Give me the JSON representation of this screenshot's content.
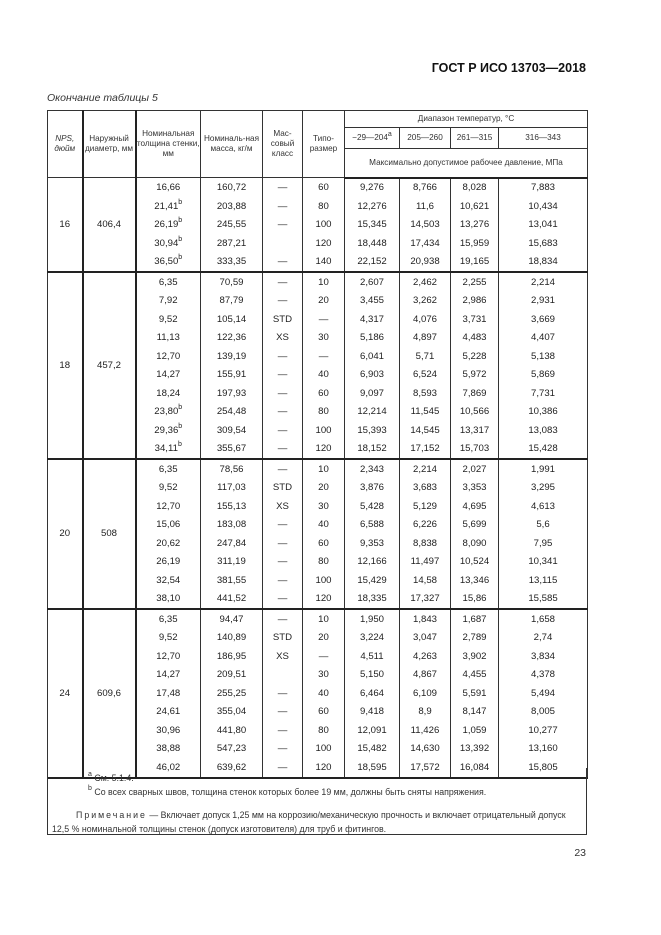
{
  "header": {
    "doc_code": "ГОСТ Р ИСО 13703—2018"
  },
  "caption": "Окончание таблицы 5",
  "table": {
    "headers": {
      "nps": "NPS, дюйм",
      "od": "Наружный диаметр, мм",
      "wall": "Номинальная толщина стенки, мм",
      "mass": "Номиналь-ная масса, кг/м",
      "class": "Мас-совый класс",
      "schedule": "Типо-размер",
      "temp_range": "Диапазон температур, °С",
      "temps": [
        "−29—204",
        "205—260",
        "261—315",
        "316—343"
      ],
      "temp_first_note": "a",
      "pressure": "Максимально допустимое рабочее давление, МПа"
    },
    "groups": [
      {
        "nps": "16",
        "od": "406,4",
        "rows": [
          {
            "wall": "16,66",
            "note": "",
            "mass": "160,72",
            "class": "—",
            "sched": "60",
            "p": [
              "9,276",
              "8,766",
              "8,028",
              "7,883"
            ]
          },
          {
            "wall": "21,41",
            "note": "b",
            "mass": "203,88",
            "class": "—",
            "sched": "80",
            "p": [
              "12,276",
              "11,6",
              "10,621",
              "10,434"
            ]
          },
          {
            "wall": "26,19",
            "note": "b",
            "mass": "245,55",
            "class": "—",
            "sched": "100",
            "p": [
              "15,345",
              "14,503",
              "13,276",
              "13,041"
            ]
          },
          {
            "wall": "30,94",
            "note": "b",
            "mass": "287,21",
            "class": "",
            "sched": "120",
            "p": [
              "18,448",
              "17,434",
              "15,959",
              "15,683"
            ]
          },
          {
            "wall": "36,50",
            "note": "b",
            "mass": "333,35",
            "class": "—",
            "sched": "140",
            "p": [
              "22,152",
              "20,938",
              "19,165",
              "18,834"
            ]
          }
        ]
      },
      {
        "nps": "18",
        "od": "457,2",
        "rows": [
          {
            "wall": "6,35",
            "note": "",
            "mass": "70,59",
            "class": "—",
            "sched": "10",
            "p": [
              "2,607",
              "2,462",
              "2,255",
              "2,214"
            ]
          },
          {
            "wall": "7,92",
            "note": "",
            "mass": "87,79",
            "class": "—",
            "sched": "20",
            "p": [
              "3,455",
              "3,262",
              "2,986",
              "2,931"
            ]
          },
          {
            "wall": "9,52",
            "note": "",
            "mass": "105,14",
            "class": "STD",
            "sched": "—",
            "p": [
              "4,317",
              "4,076",
              "3,731",
              "3,669"
            ]
          },
          {
            "wall": "11,13",
            "note": "",
            "mass": "122,36",
            "class": "XS",
            "sched": "30",
            "p": [
              "5,186",
              "4,897",
              "4,483",
              "4,407"
            ]
          },
          {
            "wall": "12,70",
            "note": "",
            "mass": "139,19",
            "class": "—",
            "sched": "—",
            "p": [
              "6,041",
              "5,71",
              "5,228",
              "5,138"
            ]
          },
          {
            "wall": "14,27",
            "note": "",
            "mass": "155,91",
            "class": "—",
            "sched": "40",
            "p": [
              "6,903",
              "6,524",
              "5,972",
              "5,869"
            ]
          },
          {
            "wall": "18,24",
            "note": "",
            "mass": "197,93",
            "class": "—",
            "sched": "60",
            "p": [
              "9,097",
              "8,593",
              "7,869",
              "7,731"
            ]
          },
          {
            "wall": "23,80",
            "note": "b",
            "mass": "254,48",
            "class": "—",
            "sched": "80",
            "p": [
              "12,214",
              "11,545",
              "10,566",
              "10,386"
            ]
          },
          {
            "wall": "29,36",
            "note": "b",
            "mass": "309,54",
            "class": "—",
            "sched": "100",
            "p": [
              "15,393",
              "14,545",
              "13,317",
              "13,083"
            ]
          },
          {
            "wall": "34,11",
            "note": "b",
            "mass": "355,67",
            "class": "—",
            "sched": "120",
            "p": [
              "18,152",
              "17,152",
              "15,703",
              "15,428"
            ]
          }
        ]
      },
      {
        "nps": "20",
        "od": "508",
        "rows": [
          {
            "wall": "6,35",
            "note": "",
            "mass": "78,56",
            "class": "—",
            "sched": "10",
            "p": [
              "2,343",
              "2,214",
              "2,027",
              "1,991"
            ]
          },
          {
            "wall": "9,52",
            "note": "",
            "mass": "117,03",
            "class": "STD",
            "sched": "20",
            "p": [
              "3,876",
              "3,683",
              "3,353",
              "3,295"
            ]
          },
          {
            "wall": "12,70",
            "note": "",
            "mass": "155,13",
            "class": "XS",
            "sched": "30",
            "p": [
              "5,428",
              "5,129",
              "4,695",
              "4,613"
            ]
          },
          {
            "wall": "15,06",
            "note": "",
            "mass": "183,08",
            "class": "—",
            "sched": "40",
            "p": [
              "6,588",
              "6,226",
              "5,699",
              "5,6"
            ]
          },
          {
            "wall": "20,62",
            "note": "",
            "mass": "247,84",
            "class": "—",
            "sched": "60",
            "p": [
              "9,353",
              "8,838",
              "8,090",
              "7,95"
            ]
          },
          {
            "wall": "26,19",
            "note": "",
            "mass": "311,19",
            "class": "—",
            "sched": "80",
            "p": [
              "12,166",
              "11,497",
              "10,524",
              "10,341"
            ]
          },
          {
            "wall": "32,54",
            "note": "",
            "mass": "381,55",
            "class": "—",
            "sched": "100",
            "p": [
              "15,429",
              "14,58",
              "13,346",
              "13,115"
            ]
          },
          {
            "wall": "38,10",
            "note": "",
            "mass": "441,52",
            "class": "—",
            "sched": "120",
            "p": [
              "18,335",
              "17,327",
              "15,86",
              "15,585"
            ]
          }
        ]
      },
      {
        "nps": "24",
        "od": "609,6",
        "rows": [
          {
            "wall": "6,35",
            "note": "",
            "mass": "94,47",
            "class": "—",
            "sched": "10",
            "p": [
              "1,950",
              "1,843",
              "1,687",
              "1,658"
            ]
          },
          {
            "wall": "9,52",
            "note": "",
            "mass": "140,89",
            "class": "STD",
            "sched": "20",
            "p": [
              "3,224",
              "3,047",
              "2,789",
              "2,74"
            ]
          },
          {
            "wall": "12,70",
            "note": "",
            "mass": "186,95",
            "class": "XS",
            "sched": "—",
            "p": [
              "4,511",
              "4,263",
              "3,902",
              "3,834"
            ]
          },
          {
            "wall": "14,27",
            "note": "",
            "mass": "209,51",
            "class": "",
            "sched": "30",
            "p": [
              "5,150",
              "4,867",
              "4,455",
              "4,378"
            ]
          },
          {
            "wall": "17,48",
            "note": "",
            "mass": "255,25",
            "class": "—",
            "sched": "40",
            "p": [
              "6,464",
              "6,109",
              "5,591",
              "5,494"
            ]
          },
          {
            "wall": "24,61",
            "note": "",
            "mass": "355,04",
            "class": "—",
            "sched": "60",
            "p": [
              "9,418",
              "8,9",
              "8,147",
              "8,005"
            ]
          },
          {
            "wall": "30,96",
            "note": "",
            "mass": "441,80",
            "class": "—",
            "sched": "80",
            "p": [
              "12,091",
              "11,426",
              "1,059",
              "10,277"
            ]
          },
          {
            "wall": "38,88",
            "note": "",
            "mass": "547,23",
            "class": "—",
            "sched": "100",
            "p": [
              "15,482",
              "14,630",
              "13,392",
              "13,160"
            ]
          },
          {
            "wall": "46,02",
            "note": "",
            "mass": "639,62",
            "class": "—",
            "sched": "120",
            "p": [
              "18,595",
              "17,572",
              "16,084",
              "15,805"
            ]
          }
        ]
      }
    ]
  },
  "footnotes": {
    "a_mark": "a",
    "a_text": "См. 5.1.4.",
    "b_mark": "b",
    "b_text": "Со всех сварных швов, толщина стенок которых более 19 мм, должны быть сняты напряжения.",
    "note_label": "Примечание",
    "note_text": " — Включает допуск 1,25 мм на коррозию/механическую прочность и включает отрицательный допуск 12,5 % номинальной толщины стенок (допуск изготовителя) для труб и фитингов."
  },
  "page_number": "23"
}
